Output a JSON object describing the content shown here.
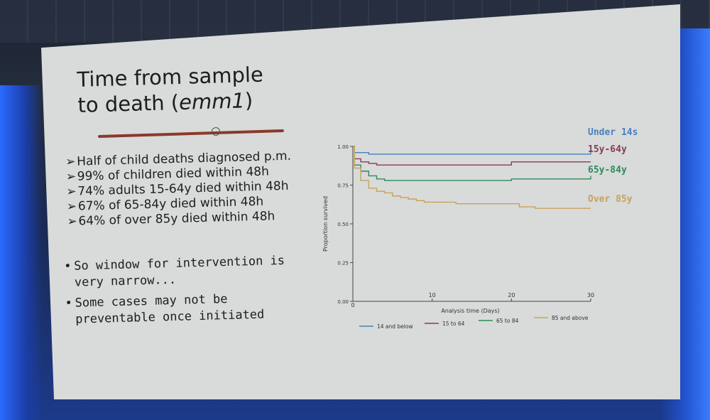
{
  "slide": {
    "title_line1": "Time from sample",
    "title_line2_prefix": "to death (",
    "title_line2_italic": "emm1",
    "title_line2_suffix": ")",
    "bullets": [
      "Half of child deaths diagnosed p.m.",
      "99% of children died within 48h",
      "74% adults 15-64y died within 48h",
      "67% of 65-84y died within 48h",
      "64% of over 85y died within 48h"
    ],
    "bullet_marker": "➢",
    "notes": [
      {
        "line1": "So window for intervention is",
        "line2": "very narrow..."
      },
      {
        "line1": "Some cases may not be",
        "line2": "preventable once initiated"
      }
    ],
    "note_marker": "•"
  },
  "colors": {
    "under14": "#4a7fc0",
    "15to64": "#8b3a55",
    "65to84": "#2f8a5e",
    "over85": "#c9a15a"
  },
  "chart_data": {
    "type": "line",
    "xlabel": "Analysis time (Days)",
    "ylabel": "Proportion survived",
    "xlim": [
      0,
      30
    ],
    "ylim": [
      0,
      1
    ],
    "x_ticks": [
      "0",
      "10",
      "20",
      "30"
    ],
    "y_ticks": [
      "0.00",
      "0.25",
      "0.50",
      "0.75",
      "1.00"
    ],
    "legend": [
      "14 and below",
      "15 to 64",
      "65 to 84",
      "85 and above"
    ],
    "annotations": [
      "Under 14s",
      "15y-64y",
      "65y-84y",
      "Over 85y"
    ],
    "series": [
      {
        "name": "14 and below",
        "color_key": "under14",
        "points": [
          [
            0,
            1.0
          ],
          [
            0.2,
            0.96
          ],
          [
            2,
            0.95
          ],
          [
            30,
            1.0
          ]
        ]
      },
      {
        "name": "15 to 64",
        "color_key": "15to64",
        "points": [
          [
            0,
            1.0
          ],
          [
            0.2,
            0.92
          ],
          [
            1,
            0.9
          ],
          [
            2,
            0.89
          ],
          [
            3,
            0.88
          ],
          [
            10,
            0.88
          ],
          [
            20,
            0.9
          ],
          [
            30,
            0.9
          ]
        ]
      },
      {
        "name": "65 to 84",
        "color_key": "65to84",
        "points": [
          [
            0,
            1.0
          ],
          [
            0.2,
            0.88
          ],
          [
            1,
            0.84
          ],
          [
            2,
            0.81
          ],
          [
            3,
            0.79
          ],
          [
            4,
            0.78
          ],
          [
            10,
            0.78
          ],
          [
            20,
            0.79
          ],
          [
            30,
            0.81
          ]
        ]
      },
      {
        "name": "85 and above",
        "color_key": "over85",
        "points": [
          [
            0,
            1.0
          ],
          [
            0.2,
            0.86
          ],
          [
            1,
            0.78
          ],
          [
            2,
            0.73
          ],
          [
            3,
            0.71
          ],
          [
            4,
            0.7
          ],
          [
            5,
            0.68
          ],
          [
            6,
            0.67
          ],
          [
            7,
            0.66
          ],
          [
            8,
            0.65
          ],
          [
            9,
            0.64
          ],
          [
            10,
            0.64
          ],
          [
            13,
            0.63
          ],
          [
            19,
            0.63
          ],
          [
            21,
            0.61
          ],
          [
            23,
            0.6
          ],
          [
            28,
            0.6
          ],
          [
            30,
            0.6
          ]
        ]
      }
    ]
  }
}
